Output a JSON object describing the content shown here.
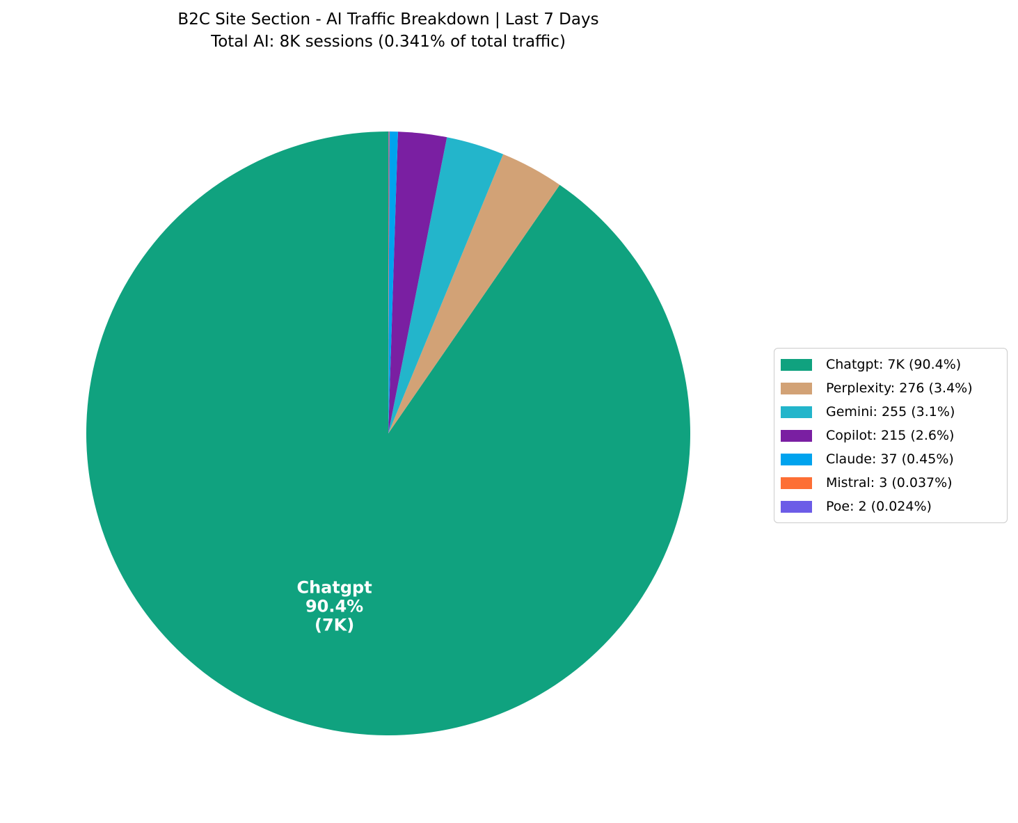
{
  "title": {
    "line1": "B2C Site Section - AI Traffic Breakdown | Last 7 Days",
    "line2": "Total AI: 8K sessions (0.341% of total traffic)"
  },
  "chart_data": {
    "type": "pie",
    "title": "B2C Site Section - AI Traffic Breakdown | Last 7 Days",
    "subtitle": "Total AI: 8K sessions (0.341% of total traffic)",
    "total_sessions_display": "8K",
    "total_percent_of_traffic": "0.341%",
    "start_angle": 90,
    "counterclockwise": true,
    "legend_position": "center right",
    "slices": [
      {
        "name": "Chatgpt",
        "value_display": "7K",
        "percent": 90.4,
        "color": "#10A27F",
        "legend_label": "Chatgpt: 7K (90.4%)"
      },
      {
        "name": "Perplexity",
        "value_display": "276",
        "percent": 3.4,
        "color": "#D2A276",
        "legend_label": "Perplexity: 276 (3.4%)"
      },
      {
        "name": "Gemini",
        "value_display": "255",
        "percent": 3.1,
        "color": "#23B5CB",
        "legend_label": "Gemini: 255 (3.1%)"
      },
      {
        "name": "Copilot",
        "value_display": "215",
        "percent": 2.6,
        "color": "#7A1FA2",
        "legend_label": "Copilot: 215 (2.6%)"
      },
      {
        "name": "Claude",
        "value_display": "37",
        "percent": 0.45,
        "color": "#00A3EE",
        "legend_label": "Claude: 37 (0.45%)"
      },
      {
        "name": "Mistral",
        "value_display": "3",
        "percent": 0.037,
        "color": "#FD6F35",
        "legend_label": "Mistral: 3 (0.037%)"
      },
      {
        "name": "Poe",
        "value_display": "2",
        "percent": 0.024,
        "color": "#6C5CE7",
        "legend_label": "Poe: 2 (0.024%)"
      }
    ],
    "inner_label": {
      "slice": "Chatgpt",
      "lines": [
        "Chatgpt",
        "90.4%",
        "(7K)"
      ],
      "color": "#FFFFFF"
    }
  }
}
